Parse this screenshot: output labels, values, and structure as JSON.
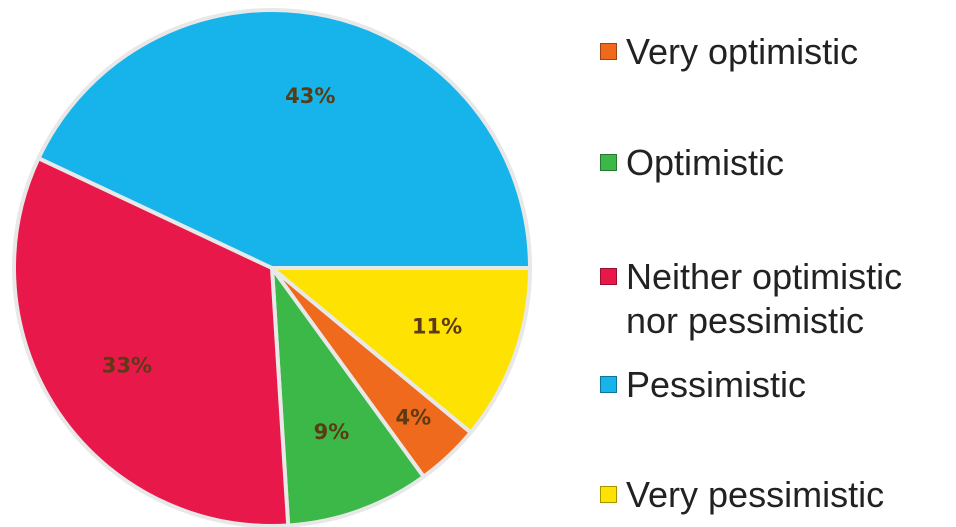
{
  "chart_data": {
    "type": "pie",
    "categories": [
      "Very optimistic",
      "Optimistic",
      "Neither optimistic nor pessimistic",
      "Pessimistic",
      "Very pessimistic"
    ],
    "values": [
      4,
      9,
      33,
      43,
      11
    ],
    "value_labels": [
      "4%",
      "9%",
      "33%",
      "43%",
      "11%"
    ],
    "colors": [
      "#f06a1e",
      "#3cb848",
      "#e8194a",
      "#16b4ea",
      "#fde202"
    ],
    "legend": "right"
  }
}
